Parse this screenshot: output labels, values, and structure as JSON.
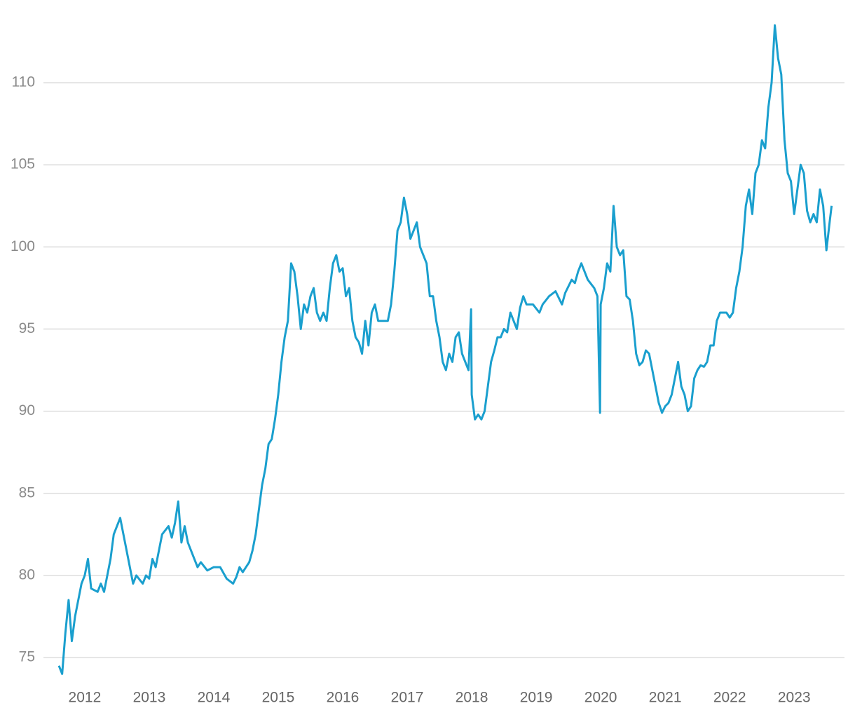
{
  "chart_data": {
    "type": "line",
    "x": [
      2011.6,
      2011.65,
      2011.7,
      2011.75,
      2011.8,
      2011.85,
      2011.9,
      2011.95,
      2012.0,
      2012.05,
      2012.1,
      2012.2,
      2012.25,
      2012.3,
      2012.4,
      2012.45,
      2012.5,
      2012.55,
      2012.6,
      2012.7,
      2012.75,
      2012.8,
      2012.9,
      2012.95,
      2013.0,
      2013.05,
      2013.1,
      2013.2,
      2013.3,
      2013.35,
      2013.4,
      2013.45,
      2013.5,
      2013.55,
      2013.6,
      2013.65,
      2013.75,
      2013.8,
      2013.9,
      2014.0,
      2014.1,
      2014.2,
      2014.3,
      2014.35,
      2014.4,
      2014.45,
      2014.5,
      2014.55,
      2014.6,
      2014.65,
      2014.7,
      2014.75,
      2014.8,
      2014.85,
      2014.9,
      2014.95,
      2015.0,
      2015.05,
      2015.1,
      2015.15,
      2015.2,
      2015.25,
      2015.3,
      2015.35,
      2015.4,
      2015.45,
      2015.5,
      2015.55,
      2015.6,
      2015.65,
      2015.7,
      2015.75,
      2015.8,
      2015.85,
      2015.9,
      2015.95,
      2016.0,
      2016.05,
      2016.1,
      2016.15,
      2016.2,
      2016.25,
      2016.3,
      2016.35,
      2016.4,
      2016.45,
      2016.5,
      2016.55,
      2016.6,
      2016.7,
      2016.75,
      2016.8,
      2016.85,
      2016.9,
      2016.95,
      2017.0,
      2017.05,
      2017.1,
      2017.15,
      2017.2,
      2017.3,
      2017.35,
      2017.4,
      2017.45,
      2017.5,
      2017.55,
      2017.6,
      2017.65,
      2017.7,
      2017.75,
      2017.8,
      2017.85,
      2017.9,
      2017.95,
      2017.99,
      2018.0,
      2018.05,
      2018.1,
      2018.15,
      2018.2,
      2018.25,
      2018.3,
      2018.35,
      2018.4,
      2018.45,
      2018.5,
      2018.55,
      2018.6,
      2018.7,
      2018.75,
      2018.8,
      2018.85,
      2018.95,
      2019.05,
      2019.1,
      2019.2,
      2019.3,
      2019.4,
      2019.45,
      2019.55,
      2019.6,
      2019.65,
      2019.7,
      2019.8,
      2019.9,
      2019.95,
      2019.99,
      2020.0,
      2020.05,
      2020.1,
      2020.15,
      2020.2,
      2020.25,
      2020.3,
      2020.35,
      2020.4,
      2020.45,
      2020.5,
      2020.55,
      2020.6,
      2020.65,
      2020.7,
      2020.75,
      2020.8,
      2020.85,
      2020.9,
      2020.95,
      2021.0,
      2021.05,
      2021.1,
      2021.15,
      2021.2,
      2021.25,
      2021.3,
      2021.35,
      2021.4,
      2021.45,
      2021.5,
      2021.55,
      2021.6,
      2021.65,
      2021.7,
      2021.75,
      2021.8,
      2021.85,
      2021.9,
      2021.95,
      2022.0,
      2022.05,
      2022.1,
      2022.15,
      2022.2,
      2022.25,
      2022.3,
      2022.35,
      2022.4,
      2022.45,
      2022.5,
      2022.55,
      2022.6,
      2022.65,
      2022.7,
      2022.75,
      2022.8,
      2022.85,
      2022.9,
      2022.95,
      2023.0,
      2023.05,
      2023.1,
      2023.15,
      2023.2,
      2023.25,
      2023.3,
      2023.35,
      2023.4,
      2023.45,
      2023.5,
      2023.55,
      2023.58
    ],
    "series": [
      {
        "color": "#1a9fce",
        "values": [
          74.5,
          74,
          76.5,
          78.5,
          76,
          77.5,
          78.5,
          79.5,
          80,
          81,
          79.2,
          79,
          79.5,
          79,
          81,
          82.5,
          83,
          83.5,
          82.5,
          80.5,
          79.5,
          80,
          79.5,
          80,
          79.8,
          81,
          80.5,
          82.5,
          83,
          82.3,
          83.2,
          84.5,
          82,
          83,
          82,
          81.5,
          80.5,
          80.8,
          80.3,
          80.5,
          80.5,
          79.8,
          79.5,
          79.9,
          80.5,
          80.2,
          80.5,
          80.8,
          81.5,
          82.5,
          84,
          85.5,
          86.5,
          88,
          88.3,
          89.5,
          91,
          93,
          94.5,
          95.5,
          99,
          98.5,
          97,
          95,
          96.5,
          96,
          97,
          97.5,
          96,
          95.5,
          96,
          95.5,
          97.5,
          99,
          99.5,
          98.5,
          98.7,
          97,
          97.5,
          95.5,
          94.5,
          94.2,
          93.5,
          95.5,
          94,
          96,
          96.5,
          95.5,
          95.5,
          95.5,
          96.5,
          98.5,
          101,
          101.5,
          103,
          102,
          100.5,
          101,
          101.5,
          100,
          99,
          97,
          97,
          95.5,
          94.5,
          93,
          92.5,
          93.5,
          93,
          94.5,
          94.8,
          93.5,
          93,
          92.5,
          96.2,
          91,
          89.5,
          89.8,
          89.5,
          90,
          91.5,
          93,
          93.7,
          94.5,
          94.5,
          95,
          94.8,
          96,
          95,
          96.3,
          97,
          96.5,
          96.5,
          96,
          96.5,
          97,
          97.3,
          96.5,
          97.2,
          98,
          97.8,
          98.5,
          99,
          98,
          97.5,
          97,
          89.9,
          96.5,
          97.5,
          99,
          98.5,
          102.5,
          100,
          99.5,
          99.8,
          97,
          96.8,
          95.5,
          93.5,
          92.8,
          93,
          93.7,
          93.5,
          92.5,
          91.5,
          90.5,
          89.9,
          90.3,
          90.5,
          91,
          92,
          93,
          91.5,
          91,
          90,
          90.3,
          92,
          92.5,
          92.8,
          92.7,
          93,
          94,
          94,
          95.5,
          96,
          96,
          96,
          95.7,
          96,
          97.5,
          98.5,
          100,
          102.5,
          103.5,
          102,
          104.5,
          105,
          106.5,
          106,
          108.5,
          110,
          113.5,
          111.5,
          110.5,
          106.5,
          104.5,
          104,
          102,
          103.5,
          105,
          104.5,
          102.2,
          101.5,
          102,
          101.5,
          103.5,
          102.5,
          99.8,
          101.5,
          102.5
        ]
      }
    ],
    "xlim": [
      2011.36,
      2023.78
    ],
    "xticks": [
      2012,
      2013,
      2014,
      2015,
      2016,
      2017,
      2018,
      2019,
      2020,
      2021,
      2022,
      2023
    ],
    "ylim": [
      73.5,
      114.5
    ],
    "yticks": [
      75,
      80,
      85,
      90,
      95,
      100,
      105,
      110
    ],
    "grid": true
  }
}
